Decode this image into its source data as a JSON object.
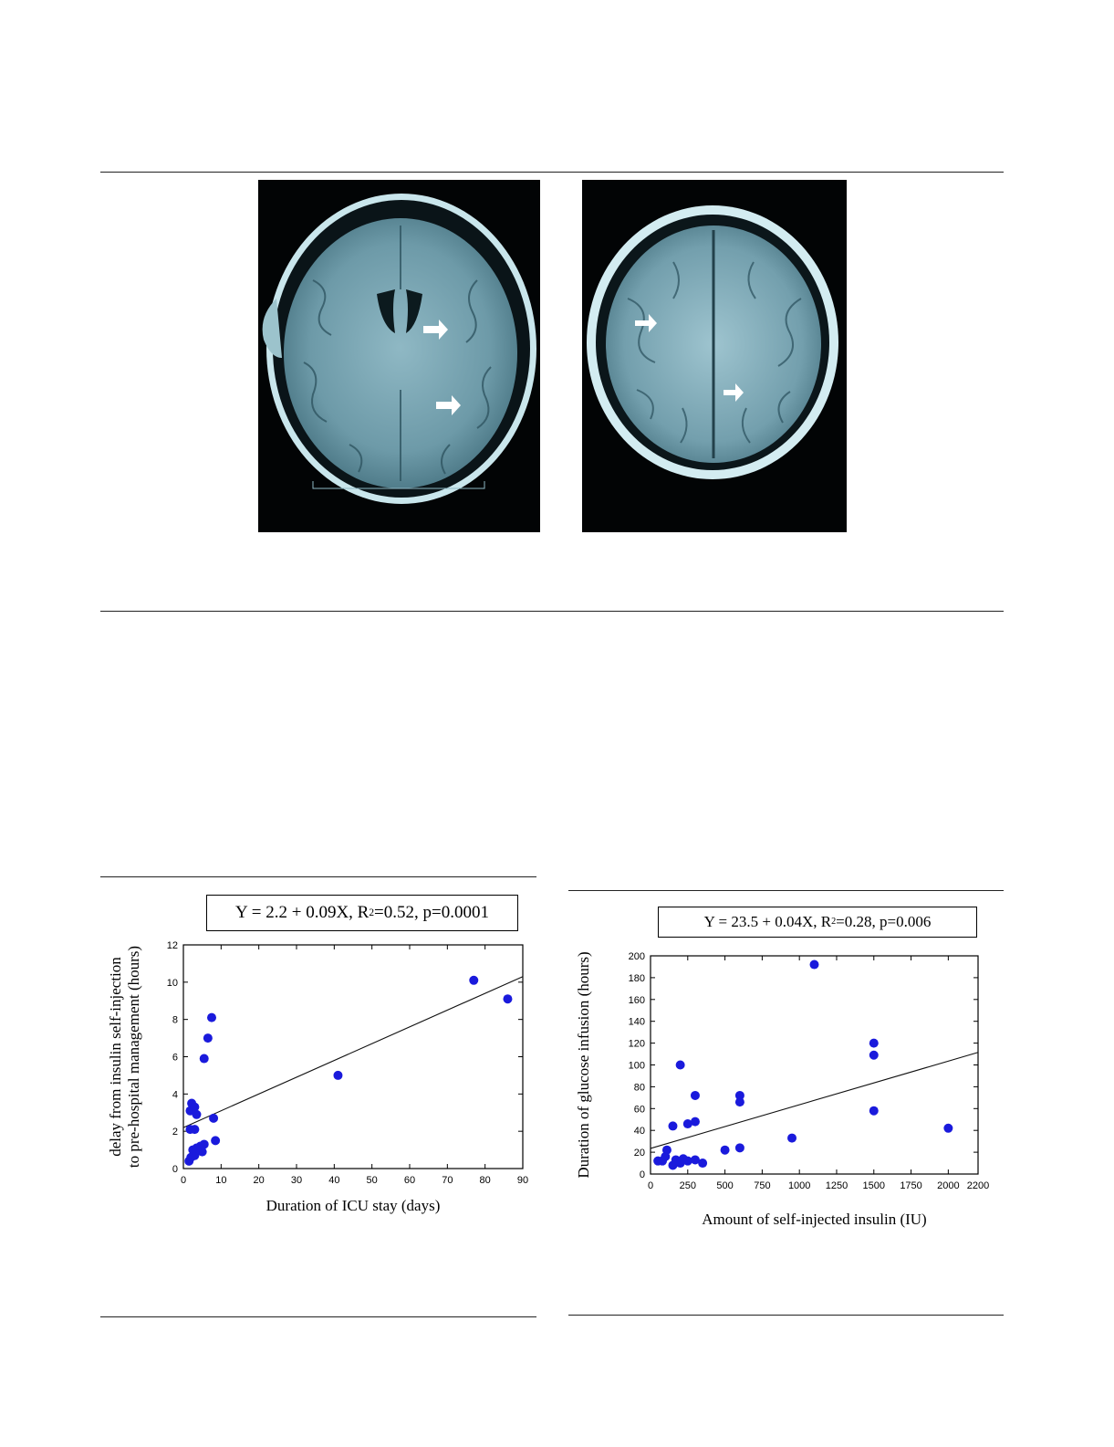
{
  "charts": [
    {
      "type": "scatter",
      "equation": {
        "prefix": "Y = 2.2 + 0.09X, R",
        "sup": "2",
        "suffix": "=0.52, p=0.0001"
      },
      "xlabel": "Duration of ICU stay (days)",
      "ylabel_line1": "delay from insulin self-injection",
      "ylabel_line2": "to pre-hospital management (hours)",
      "xlim": [
        0,
        90
      ],
      "ylim": [
        0,
        12
      ],
      "x_ticks": [
        0,
        10,
        20,
        30,
        40,
        50,
        60,
        70,
        80,
        90
      ],
      "y_ticks": [
        0,
        2,
        4,
        6,
        8,
        10,
        12
      ],
      "points": [
        [
          1.5,
          0.4
        ],
        [
          2,
          0.6
        ],
        [
          3,
          0.7
        ],
        [
          2.5,
          1.0
        ],
        [
          3.5,
          1.1
        ],
        [
          4.5,
          1.2
        ],
        [
          5,
          0.9
        ],
        [
          5.5,
          1.3
        ],
        [
          8.5,
          1.5
        ],
        [
          1.8,
          2.1
        ],
        [
          3,
          2.1
        ],
        [
          8,
          2.7
        ],
        [
          1.8,
          3.1
        ],
        [
          2.2,
          3.5
        ],
        [
          3,
          3.3
        ],
        [
          3.5,
          2.9
        ],
        [
          5.5,
          5.9
        ],
        [
          6.5,
          7.0
        ],
        [
          7.5,
          8.1
        ],
        [
          41,
          5.0
        ],
        [
          77,
          10.1
        ],
        [
          86,
          9.1
        ]
      ],
      "fit": {
        "intercept": 2.2,
        "slope": 0.09
      },
      "marker_color": "#1a1adc"
    },
    {
      "type": "scatter",
      "equation": {
        "prefix": "Y = 23.5 + 0.04X, R",
        "sup": "2",
        "suffix": "=0.28, p=0.006"
      },
      "xlabel": "Amount of self-injected insulin (IU)",
      "ylabel": "Duration of glucose infusion (hours)",
      "xlim": [
        0,
        2200
      ],
      "ylim": [
        0,
        200
      ],
      "x_ticks": [
        0,
        250,
        500,
        750,
        1000,
        1250,
        1500,
        1750,
        2000,
        2200
      ],
      "y_ticks": [
        0,
        20,
        40,
        60,
        80,
        100,
        120,
        140,
        160,
        180,
        200
      ],
      "points": [
        [
          50,
          12
        ],
        [
          80,
          12
        ],
        [
          100,
          16
        ],
        [
          110,
          22
        ],
        [
          150,
          8
        ],
        [
          170,
          13
        ],
        [
          200,
          10
        ],
        [
          220,
          14
        ],
        [
          250,
          12
        ],
        [
          300,
          13
        ],
        [
          350,
          10
        ],
        [
          150,
          44
        ],
        [
          250,
          46
        ],
        [
          300,
          48
        ],
        [
          300,
          72
        ],
        [
          200,
          100
        ],
        [
          500,
          22
        ],
        [
          600,
          24
        ],
        [
          600,
          66
        ],
        [
          600,
          72
        ],
        [
          950,
          33
        ],
        [
          1100,
          192
        ],
        [
          1500,
          58
        ],
        [
          1500,
          109
        ],
        [
          1500,
          120
        ],
        [
          2000,
          42
        ]
      ],
      "fit": {
        "intercept": 23.5,
        "slope": 0.04
      },
      "marker_color": "#1a1adc"
    }
  ]
}
